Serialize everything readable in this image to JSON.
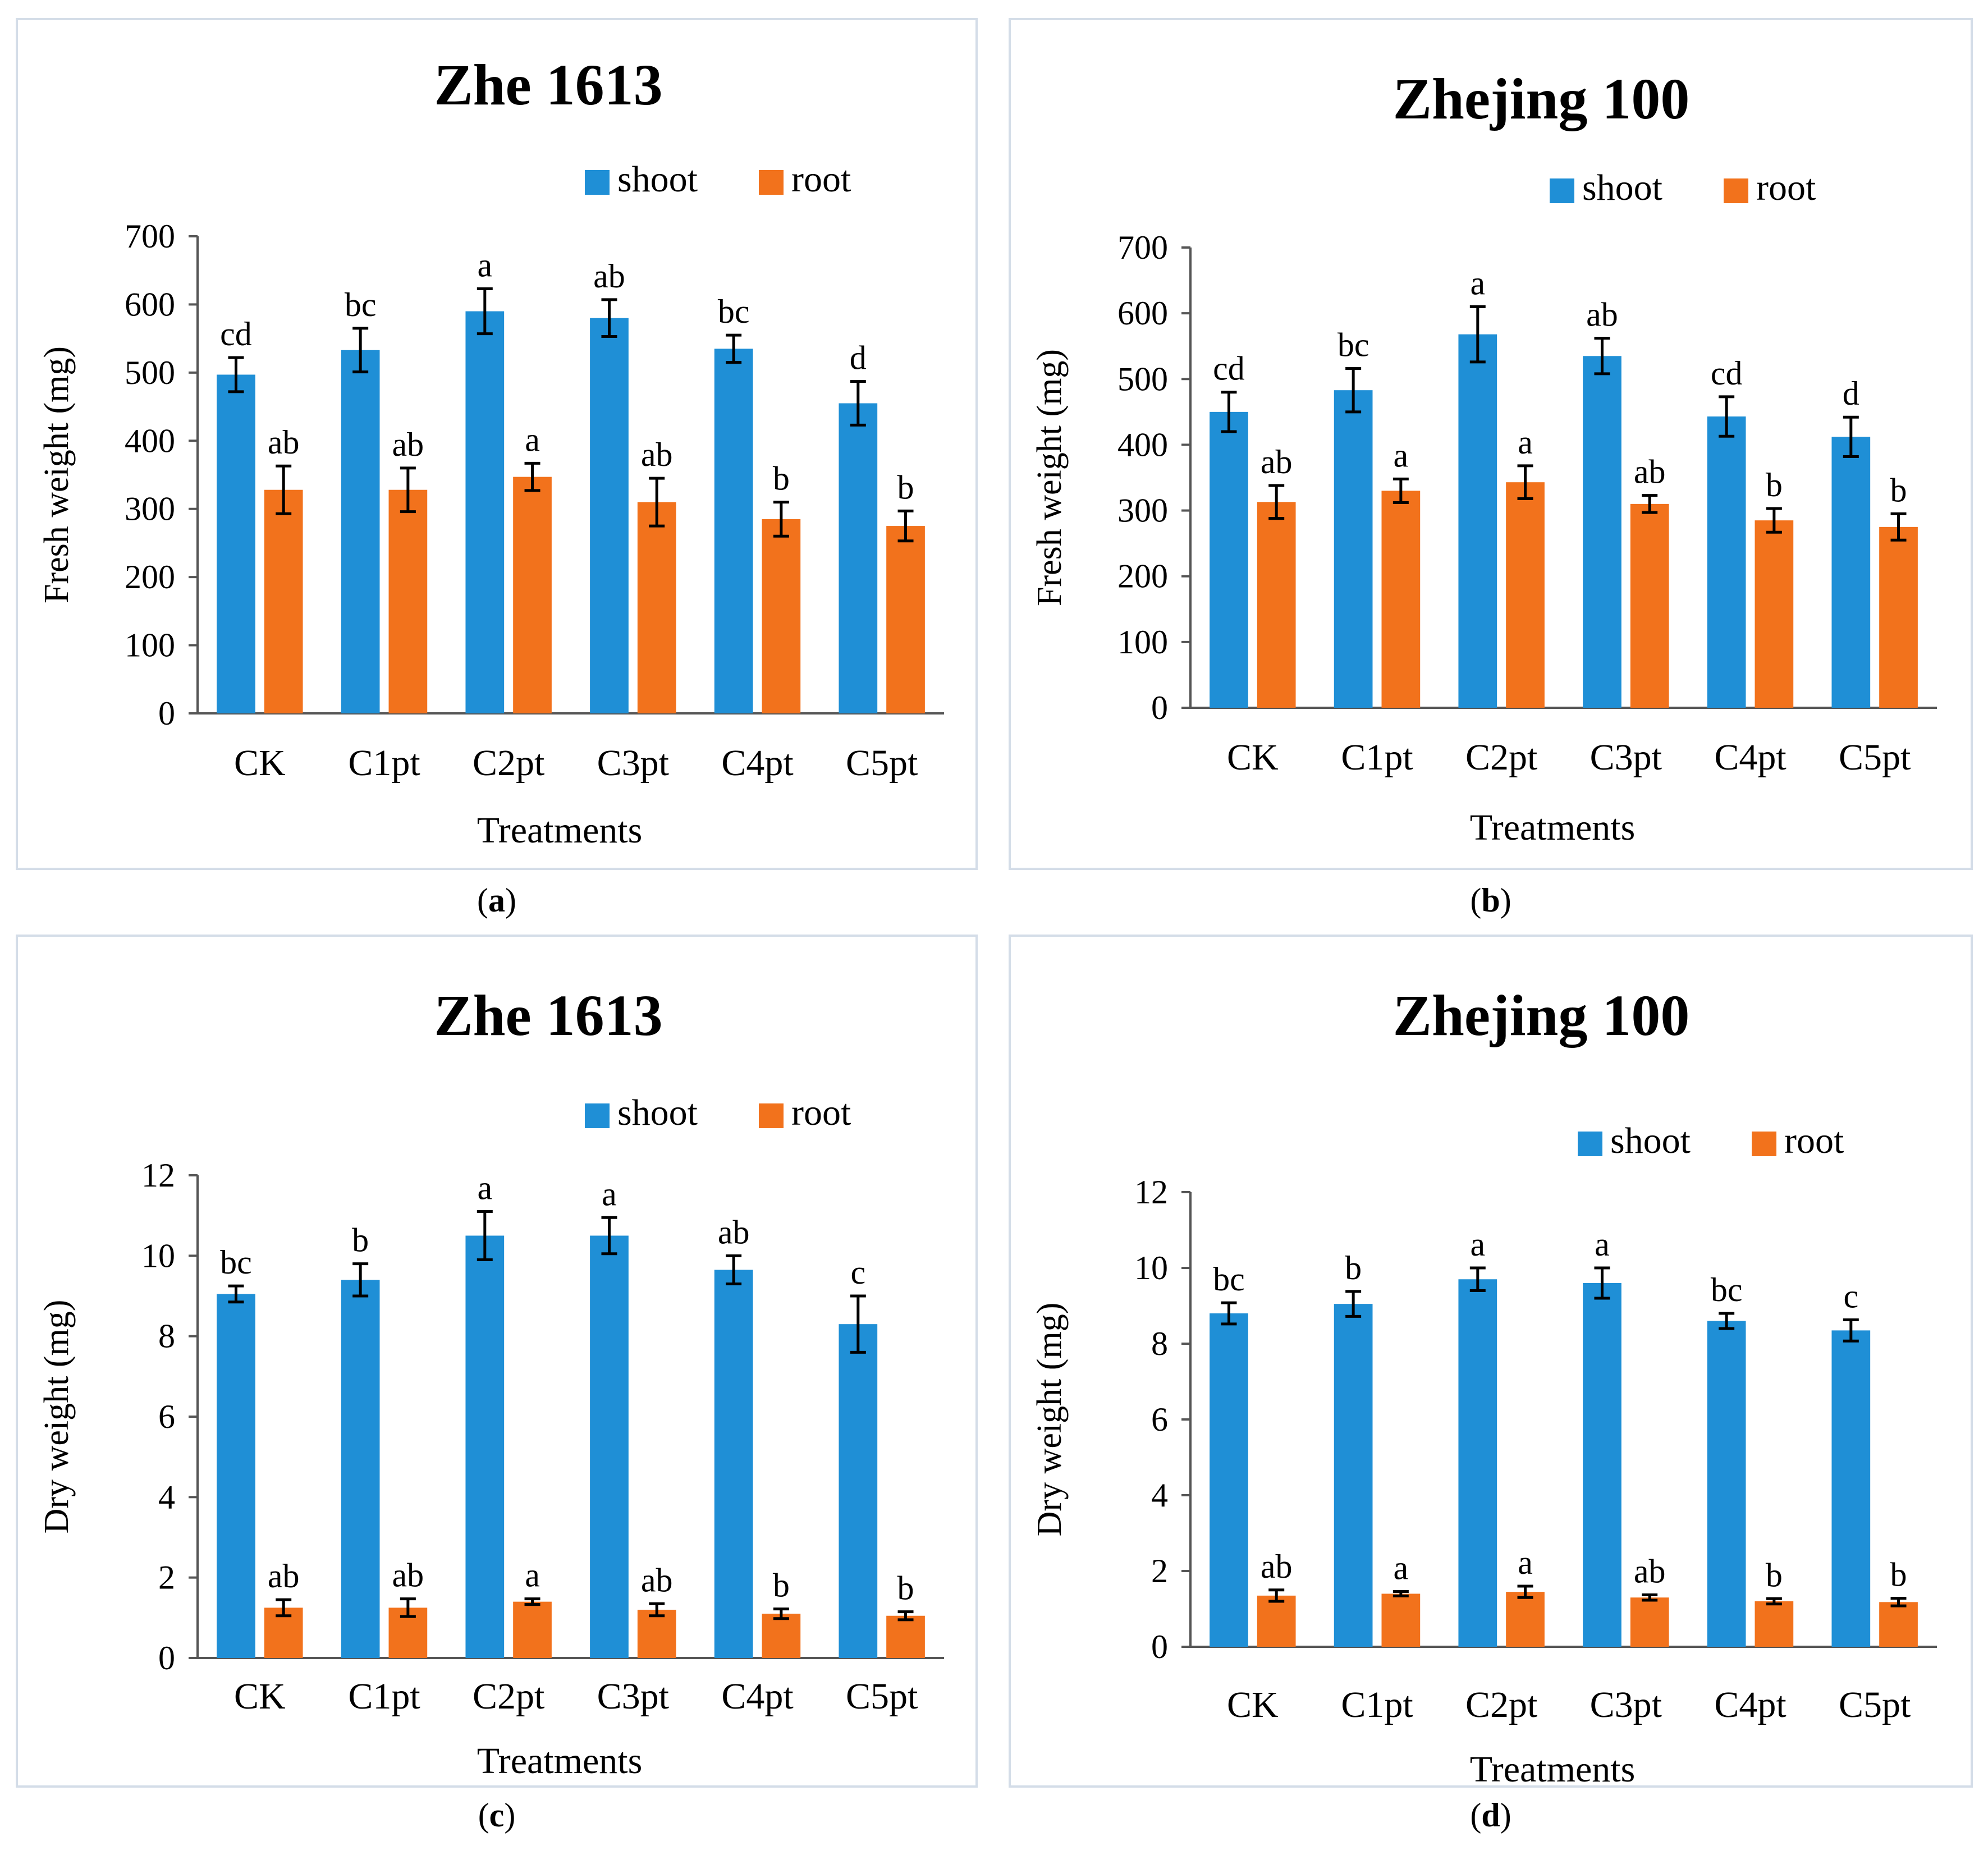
{
  "colors": {
    "shoot": "#1f8fd6",
    "root": "#f2721c",
    "axis": "#555555",
    "text": "#000000"
  },
  "chart_data": [
    {
      "type": "bar",
      "panel": "a",
      "title": "Zhe 1613",
      "xlabel": "Treatments",
      "ylabel": "Fresh weight  (mg)",
      "ylim": [
        0,
        700
      ],
      "yticks": [
        0,
        100,
        200,
        300,
        400,
        500,
        600,
        700
      ],
      "legend": [
        "shoot",
        "root"
      ],
      "legend_position": "top-right",
      "categories": [
        "CK",
        "C1pt",
        "C2pt",
        "C3pt",
        "C4pt",
        "C5pt"
      ],
      "series": [
        {
          "name": "shoot",
          "values": [
            497,
            533,
            590,
            580,
            535,
            455
          ],
          "errors": [
            25,
            32,
            33,
            27,
            20,
            32
          ],
          "letters": [
            "cd",
            "bc",
            "a",
            "ab",
            "bc",
            "d"
          ]
        },
        {
          "name": "root",
          "values": [
            328,
            328,
            347,
            310,
            285,
            275
          ],
          "errors": [
            35,
            32,
            20,
            35,
            25,
            22
          ],
          "letters": [
            "ab",
            "ab",
            "a",
            "ab",
            "b",
            "b"
          ]
        }
      ]
    },
    {
      "type": "bar",
      "panel": "b",
      "title": "Zhejing 100",
      "xlabel": "Treatments",
      "ylabel": "Fresh weight  (mg)",
      "ylim": [
        0,
        700
      ],
      "yticks": [
        0,
        100,
        200,
        300,
        400,
        500,
        600,
        700
      ],
      "legend": [
        "shoot",
        "root"
      ],
      "legend_position": "top-right",
      "categories": [
        "CK",
        "C1pt",
        "C2pt",
        "C3pt",
        "C4pt",
        "C5pt"
      ],
      "series": [
        {
          "name": "shoot",
          "values": [
            450,
            483,
            568,
            535,
            443,
            412
          ],
          "errors": [
            30,
            33,
            42,
            27,
            30,
            30
          ],
          "letters": [
            "cd",
            "bc",
            "a",
            "ab",
            "cd",
            "d"
          ]
        },
        {
          "name": "root",
          "values": [
            313,
            330,
            343,
            310,
            285,
            275
          ],
          "errors": [
            25,
            18,
            25,
            13,
            18,
            20
          ],
          "letters": [
            "ab",
            "a",
            "a",
            "ab",
            "b",
            "b"
          ]
        }
      ]
    },
    {
      "type": "bar",
      "panel": "c",
      "title": "Zhe 1613",
      "xlabel": "Treatments",
      "ylabel": "Dry weight  (mg)",
      "ylim": [
        0,
        12
      ],
      "yticks": [
        0,
        2,
        4,
        6,
        8,
        10,
        12
      ],
      "legend": [
        "shoot",
        "root"
      ],
      "legend_position": "top-right",
      "categories": [
        "CK",
        "C1pt",
        "C2pt",
        "C3pt",
        "C4pt",
        "C5pt"
      ],
      "series": [
        {
          "name": "shoot",
          "values": [
            9.05,
            9.4,
            10.5,
            10.5,
            9.65,
            8.3
          ],
          "errors": [
            0.2,
            0.4,
            0.6,
            0.45,
            0.35,
            0.7
          ],
          "letters": [
            "bc",
            "b",
            "a",
            "a",
            "ab",
            "c"
          ]
        },
        {
          "name": "root",
          "values": [
            1.25,
            1.25,
            1.4,
            1.2,
            1.1,
            1.05
          ],
          "errors": [
            0.2,
            0.22,
            0.07,
            0.15,
            0.12,
            0.1
          ],
          "letters": [
            "ab",
            "ab",
            "a",
            "ab",
            "b",
            "b"
          ]
        }
      ]
    },
    {
      "type": "bar",
      "panel": "d",
      "title": "Zhejing 100",
      "xlabel": "Treatments",
      "ylabel": "Dry weight  (mg)",
      "ylim": [
        0,
        12
      ],
      "yticks": [
        0,
        2,
        4,
        6,
        8,
        10,
        12
      ],
      "legend": [
        "shoot",
        "root"
      ],
      "legend_position": "top-right",
      "categories": [
        "CK",
        "C1pt",
        "C2pt",
        "C3pt",
        "C4pt",
        "C5pt"
      ],
      "series": [
        {
          "name": "shoot",
          "values": [
            8.8,
            9.05,
            9.7,
            9.6,
            8.6,
            8.35
          ],
          "errors": [
            0.28,
            0.33,
            0.3,
            0.4,
            0.2,
            0.28
          ],
          "letters": [
            "bc",
            "b",
            "a",
            "a",
            "bc",
            "c"
          ]
        },
        {
          "name": "root",
          "values": [
            1.35,
            1.4,
            1.45,
            1.3,
            1.2,
            1.18
          ],
          "errors": [
            0.15,
            0.06,
            0.15,
            0.07,
            0.07,
            0.1
          ],
          "letters": [
            "ab",
            "a",
            "a",
            "ab",
            "b",
            "b"
          ]
        }
      ]
    }
  ],
  "captions": [
    {
      "open": "(",
      "letter": "a",
      "close": ")"
    },
    {
      "open": "(",
      "letter": "b",
      "close": ")"
    },
    {
      "open": "(",
      "letter": "c",
      "close": ")"
    },
    {
      "open": "(",
      "letter": "d",
      "close": ")"
    }
  ]
}
